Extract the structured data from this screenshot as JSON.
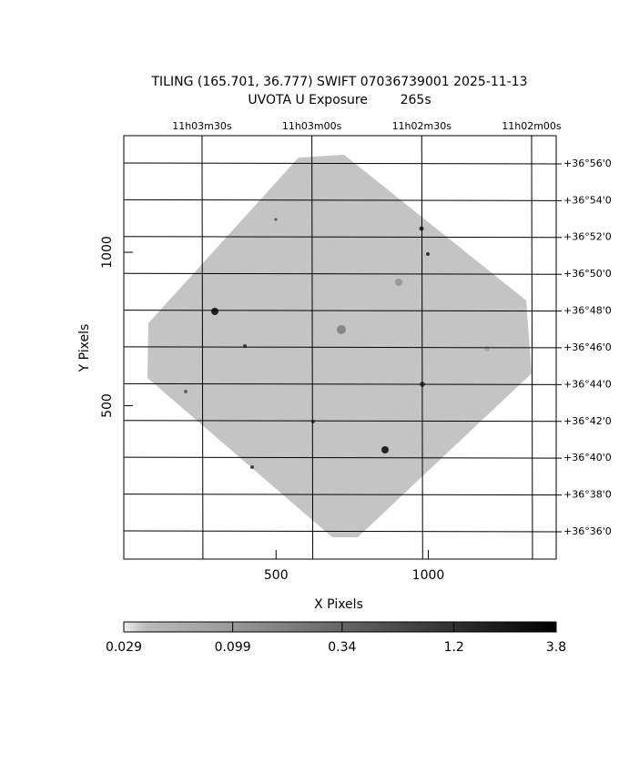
{
  "chart_data": {
    "type": "image",
    "title": "TILING (165.701, 36.777) SWIFT 07036739001 2025-11-13",
    "subtitle": "UVOTA U Exposure        265s",
    "xlabel": "X Pixels",
    "ylabel": "Y Pixels",
    "xlim": [
      0,
      1420
    ],
    "ylim": [
      0,
      1380
    ],
    "xticks": [
      500,
      1000
    ],
    "yticks": [
      500,
      1000
    ],
    "ra": {
      "lim": [
        165.964,
        165.472
      ],
      "ticks": [
        {
          "value": 165.875,
          "label": "11h03m30s"
        },
        {
          "value": 165.75,
          "label": "11h03m00s"
        },
        {
          "value": 165.625,
          "label": "11h02m30s"
        },
        {
          "value": 165.5,
          "label": "11h02m00s"
        }
      ]
    },
    "dec": {
      "lim": [
        36.5752,
        36.9589
      ],
      "ticks": [
        {
          "value": 36.9333,
          "label": "+36°56'0"
        },
        {
          "value": 36.9,
          "label": "+36°54'0"
        },
        {
          "value": 36.8667,
          "label": "+36°52'0"
        },
        {
          "value": 36.8333,
          "label": "+36°50'0"
        },
        {
          "value": 36.8,
          "label": "+36°48'0"
        },
        {
          "value": 36.7667,
          "label": "+36°46'0"
        },
        {
          "value": 36.7333,
          "label": "+36°44'0"
        },
        {
          "value": 36.7,
          "label": "+36°42'0"
        },
        {
          "value": 36.6667,
          "label": "+36°40'0"
        },
        {
          "value": 36.6333,
          "label": "+36°38'0"
        },
        {
          "value": 36.6,
          "label": "+36°36'0"
        }
      ]
    },
    "colorbar": {
      "scale": "log",
      "lim": [
        0.029,
        3.8
      ],
      "ticks": [
        0.029,
        0.099,
        0.34,
        1.2,
        3.8
      ]
    }
  }
}
